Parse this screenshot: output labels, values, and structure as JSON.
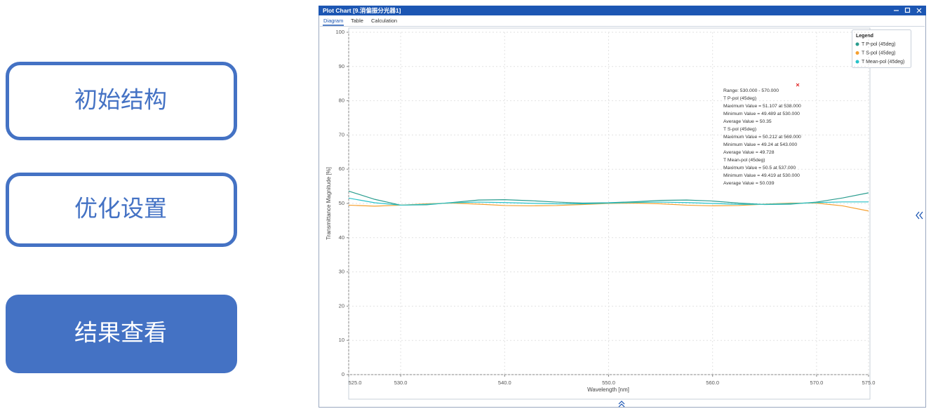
{
  "nav": {
    "buttons": [
      "初始结构",
      "优化设置",
      "结果查看"
    ]
  },
  "window": {
    "title": "Plot Chart [9.消偏振分光器1]",
    "tabs": [
      "Diagram",
      "Table",
      "Calculation"
    ]
  },
  "chart_data": {
    "type": "line",
    "xlabel": "Wavelength [nm]",
    "ylabel": "Transmittance Magnitude [%]",
    "x": [
      525,
      527.5,
      530,
      532.5,
      535,
      537.5,
      540,
      542.5,
      545,
      547.5,
      550,
      552.5,
      555,
      557.5,
      560,
      562.5,
      565,
      567.5,
      570,
      572.5,
      575
    ],
    "series": [
      {
        "name": "T P-pol (45deg)",
        "color": "#2a9d8f",
        "values": [
          53.6,
          51.2,
          49.5,
          49.6,
          50.3,
          51.0,
          51.1,
          50.8,
          50.4,
          50.1,
          50.2,
          50.5,
          50.9,
          51.0,
          50.7,
          50.1,
          49.7,
          49.8,
          50.4,
          51.6,
          53.1
        ]
      },
      {
        "name": "T S-pol (45deg)",
        "color": "#f5a030",
        "values": [
          49.5,
          49.2,
          49.5,
          49.9,
          50.1,
          49.8,
          49.4,
          49.3,
          49.4,
          49.7,
          50.0,
          50.1,
          49.9,
          49.5,
          49.3,
          49.4,
          49.8,
          50.1,
          50.1,
          49.3,
          47.8
        ]
      },
      {
        "name": "T Mean-pol (45deg)",
        "color": "#26c2c9",
        "values": [
          51.55,
          50.2,
          49.5,
          49.75,
          50.2,
          50.4,
          50.25,
          50.05,
          49.9,
          49.9,
          50.1,
          50.3,
          50.4,
          50.25,
          50.0,
          49.75,
          49.75,
          49.95,
          50.25,
          50.45,
          50.45
        ]
      }
    ],
    "xlim": [
      525,
      575
    ],
    "xticks": [
      {
        "value": 525,
        "label": "525.0"
      },
      {
        "value": 530,
        "label": "530.0"
      },
      {
        "value": 540,
        "label": "540.0"
      },
      {
        "value": 550,
        "label": "550.0"
      },
      {
        "value": 560,
        "label": "560.0"
      },
      {
        "value": 570,
        "label": "570.0"
      },
      {
        "value": 575,
        "label": "575.0"
      }
    ],
    "ylim": [
      0,
      100
    ],
    "yticks": [
      0,
      10,
      20,
      30,
      40,
      50,
      60,
      70,
      80,
      90,
      100
    ],
    "grid": true,
    "legend_title": "Legend",
    "legend": "upper right",
    "annotations": [
      "Range: 530.000 - 570.000",
      "T P-pol (45deg)",
      "Maximum Value = 51.107 at 538.000",
      "Minimum Value = 49.489 at 530.000",
      "Average Value = 50.35",
      "T S-pol (45deg)",
      "Maximum Value = 50.212 at 569.000",
      "Minimum Value = 49.24 at 543.000",
      "Average Value = 49.728",
      "T Mean-pol (45deg)",
      "Maximum Value = 50.5 at 537.000",
      "Minimum Value = 49.419 at 530.000",
      "Average Value = 50.039"
    ]
  }
}
